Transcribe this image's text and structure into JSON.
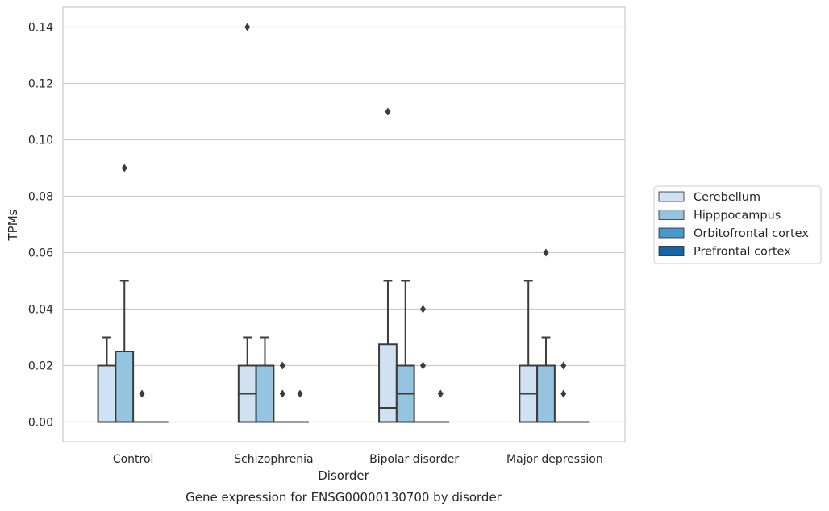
{
  "chart_data": {
    "type": "box",
    "xlabel": "Disorder",
    "ylabel": "TPMs",
    "caption": "Gene expression for ENSG00000130700 by disorder",
    "ylim": [
      -0.007,
      0.147
    ],
    "yticks": [
      "0.00",
      "0.02",
      "0.04",
      "0.06",
      "0.08",
      "0.10",
      "0.12",
      "0.14"
    ],
    "grid": "horizontal",
    "legend_position": "right",
    "categories": [
      "Control",
      "Schizophrenia",
      "Bipolar disorder",
      "Major depression"
    ],
    "series": [
      {
        "name": "Cerebellum",
        "color": "#d0e1f2",
        "boxes": [
          {
            "q1": 0.0,
            "median": 0.0,
            "q3": 0.02,
            "whisker_low": 0.0,
            "whisker_high": 0.03,
            "outliers": []
          },
          {
            "q1": 0.0,
            "median": 0.01,
            "q3": 0.02,
            "whisker_low": 0.0,
            "whisker_high": 0.03,
            "outliers": [
              0.14
            ]
          },
          {
            "q1": 0.0,
            "median": 0.005,
            "q3": 0.0275,
            "whisker_low": 0.0,
            "whisker_high": 0.05,
            "outliers": [
              0.11
            ]
          },
          {
            "q1": 0.0,
            "median": 0.01,
            "q3": 0.02,
            "whisker_low": 0.0,
            "whisker_high": 0.05,
            "outliers": []
          }
        ]
      },
      {
        "name": "Hipppocampus",
        "color": "#94c4df",
        "boxes": [
          {
            "q1": 0.0,
            "median": 0.0,
            "q3": 0.025,
            "whisker_low": 0.0,
            "whisker_high": 0.05,
            "outliers": [
              0.09
            ]
          },
          {
            "q1": 0.0,
            "median": 0.0,
            "q3": 0.02,
            "whisker_low": 0.0,
            "whisker_high": 0.03,
            "outliers": []
          },
          {
            "q1": 0.0,
            "median": 0.01,
            "q3": 0.02,
            "whisker_low": 0.0,
            "whisker_high": 0.05,
            "outliers": []
          },
          {
            "q1": 0.0,
            "median": 0.0,
            "q3": 0.02,
            "whisker_low": 0.0,
            "whisker_high": 0.03,
            "outliers": [
              0.06
            ]
          }
        ]
      },
      {
        "name": "Orbitofrontal cortex",
        "color": "#4a98c9",
        "boxes": [
          {
            "q1": 0.0,
            "median": 0.0,
            "q3": 0.0,
            "whisker_low": 0.0,
            "whisker_high": 0.0,
            "outliers": [
              0.01
            ]
          },
          {
            "q1": 0.0,
            "median": 0.0,
            "q3": 0.0,
            "whisker_low": 0.0,
            "whisker_high": 0.0,
            "outliers": [
              0.01,
              0.02
            ]
          },
          {
            "q1": 0.0,
            "median": 0.0,
            "q3": 0.0,
            "whisker_low": 0.0,
            "whisker_high": 0.0,
            "outliers": [
              0.02,
              0.04
            ]
          },
          {
            "q1": 0.0,
            "median": 0.0,
            "q3": 0.0,
            "whisker_low": 0.0,
            "whisker_high": 0.0,
            "outliers": [
              0.01,
              0.02
            ]
          }
        ]
      },
      {
        "name": "Prefrontal cortex",
        "color": "#1764ab",
        "boxes": [
          {
            "q1": 0.0,
            "median": 0.0,
            "q3": 0.0,
            "whisker_low": 0.0,
            "whisker_high": 0.0,
            "outliers": []
          },
          {
            "q1": 0.0,
            "median": 0.0,
            "q3": 0.0,
            "whisker_low": 0.0,
            "whisker_high": 0.0,
            "outliers": [
              0.01
            ]
          },
          {
            "q1": 0.0,
            "median": 0.0,
            "q3": 0.0,
            "whisker_low": 0.0,
            "whisker_high": 0.0,
            "outliers": [
              0.01
            ]
          },
          {
            "q1": 0.0,
            "median": 0.0,
            "q3": 0.0,
            "whisker_low": 0.0,
            "whisker_high": 0.0,
            "outliers": []
          }
        ]
      }
    ]
  }
}
